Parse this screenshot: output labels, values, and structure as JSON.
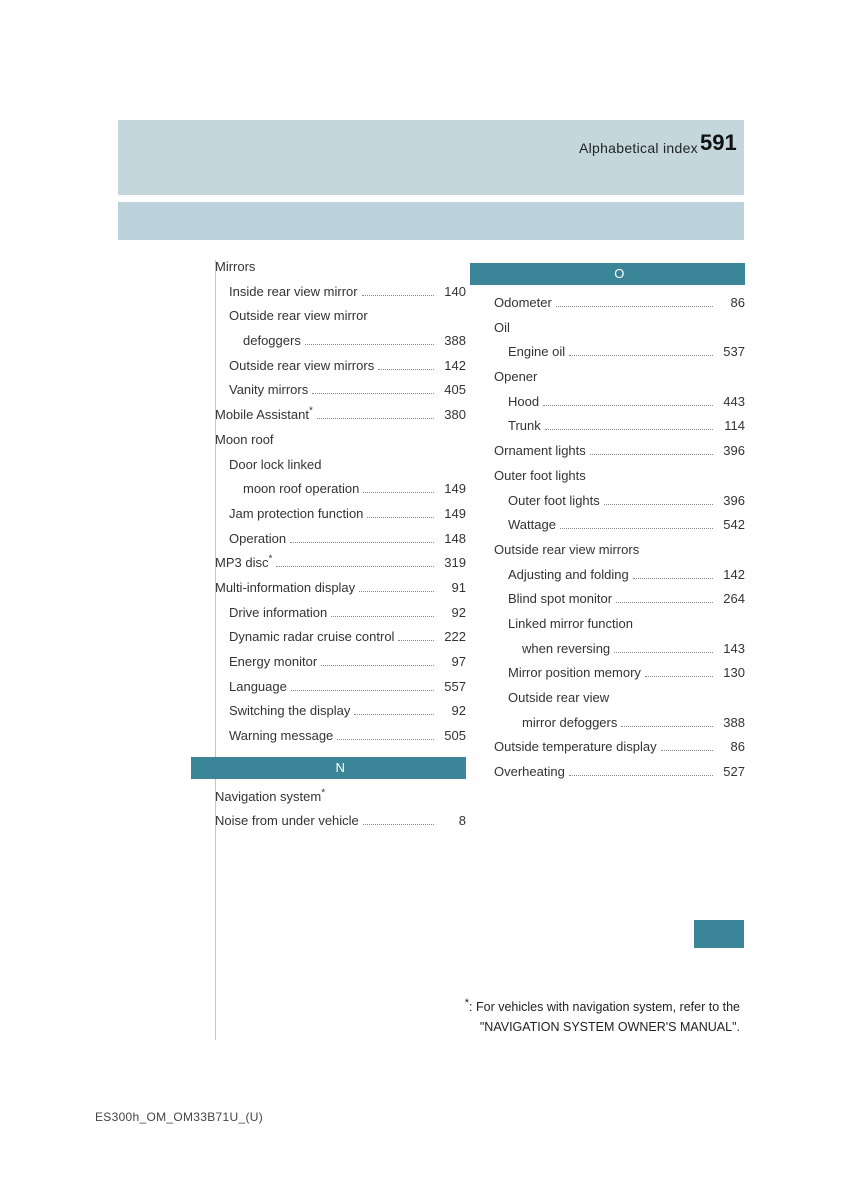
{
  "colors": {
    "paleBand": "#c4d7dd",
    "palerBand": "#bcd2da",
    "teal": "#3a8597",
    "rule": "#b7cad0",
    "text": "#333333",
    "dot": "#888888",
    "page_bg": "#ffffff"
  },
  "header": {
    "title": "Alphabetical index",
    "pageNumber": "591"
  },
  "left": [
    {
      "kind": "header",
      "label": "Mirrors"
    },
    {
      "kind": "item",
      "indent": 1,
      "label": "Inside rear view mirror",
      "page": "140"
    },
    {
      "kind": "header",
      "indent": 1,
      "label": "Outside rear view mirror"
    },
    {
      "kind": "item",
      "indent": 2,
      "label": "defoggers",
      "page": "388"
    },
    {
      "kind": "item",
      "indent": 1,
      "label": "Outside rear view mirrors",
      "page": "142"
    },
    {
      "kind": "item",
      "indent": 1,
      "label": "Vanity mirrors",
      "page": "405"
    },
    {
      "kind": "item",
      "label": "Mobile Assistant",
      "sup": "*",
      "page": "380"
    },
    {
      "kind": "header",
      "label": "Moon roof"
    },
    {
      "kind": "header",
      "indent": 1,
      "label": "Door lock linked"
    },
    {
      "kind": "item",
      "indent": 2,
      "label": "moon roof operation",
      "page": "149"
    },
    {
      "kind": "item",
      "indent": 1,
      "label": "Jam protection function",
      "page": "149"
    },
    {
      "kind": "item",
      "indent": 1,
      "label": "Operation",
      "page": "148"
    },
    {
      "kind": "item",
      "label": "MP3 disc",
      "sup": "*",
      "page": "319"
    },
    {
      "kind": "item",
      "label": "Multi-information display",
      "page": "91"
    },
    {
      "kind": "item",
      "indent": 1,
      "label": "Drive information",
      "page": "92"
    },
    {
      "kind": "item",
      "indent": 1,
      "label": "Dynamic radar cruise control",
      "page": "222"
    },
    {
      "kind": "item",
      "indent": 1,
      "label": "Energy monitor",
      "page": "97"
    },
    {
      "kind": "item",
      "indent": 1,
      "label": "Language",
      "page": "557"
    },
    {
      "kind": "item",
      "indent": 1,
      "label": "Switching the display",
      "page": "92"
    },
    {
      "kind": "item",
      "indent": 1,
      "label": "Warning message",
      "page": "505"
    },
    {
      "kind": "letter",
      "label": "N"
    },
    {
      "kind": "header",
      "label": "Navigation system",
      "sup": "*"
    },
    {
      "kind": "item",
      "label": "Noise from under vehicle",
      "page": "8"
    }
  ],
  "right": [
    {
      "kind": "letter",
      "label": "O"
    },
    {
      "kind": "item",
      "label": "Odometer",
      "page": "86"
    },
    {
      "kind": "header",
      "label": "Oil"
    },
    {
      "kind": "item",
      "indent": 1,
      "label": "Engine oil",
      "page": "537"
    },
    {
      "kind": "header",
      "label": "Opener"
    },
    {
      "kind": "item",
      "indent": 1,
      "label": "Hood",
      "page": "443"
    },
    {
      "kind": "item",
      "indent": 1,
      "label": "Trunk",
      "page": "114"
    },
    {
      "kind": "item",
      "label": "Ornament lights",
      "page": "396"
    },
    {
      "kind": "header",
      "label": "Outer foot lights"
    },
    {
      "kind": "item",
      "indent": 1,
      "label": "Outer foot lights",
      "page": "396"
    },
    {
      "kind": "item",
      "indent": 1,
      "label": "Wattage",
      "page": "542"
    },
    {
      "kind": "header",
      "label": "Outside rear view mirrors"
    },
    {
      "kind": "item",
      "indent": 1,
      "label": "Adjusting and folding",
      "page": "142"
    },
    {
      "kind": "item",
      "indent": 1,
      "label": "Blind spot monitor",
      "page": "264"
    },
    {
      "kind": "header",
      "indent": 1,
      "label": "Linked mirror function"
    },
    {
      "kind": "item",
      "indent": 2,
      "label": "when reversing",
      "page": "143"
    },
    {
      "kind": "item",
      "indent": 1,
      "label": "Mirror position memory",
      "page": "130"
    },
    {
      "kind": "header",
      "indent": 1,
      "label": "Outside rear view"
    },
    {
      "kind": "item",
      "indent": 2,
      "label": "mirror defoggers",
      "page": "388"
    },
    {
      "kind": "item",
      "label": "Outside temperature display",
      "page": "86"
    },
    {
      "kind": "item",
      "label": "Overheating",
      "page": "527"
    }
  ],
  "footnote": {
    "marker": "*",
    "line1": ": For vehicles with navigation system, refer to the",
    "line2": "\"NAVIGATION SYSTEM OWNER'S MANUAL\"."
  },
  "docId": "ES300h_OM_OM33B71U_(U)"
}
